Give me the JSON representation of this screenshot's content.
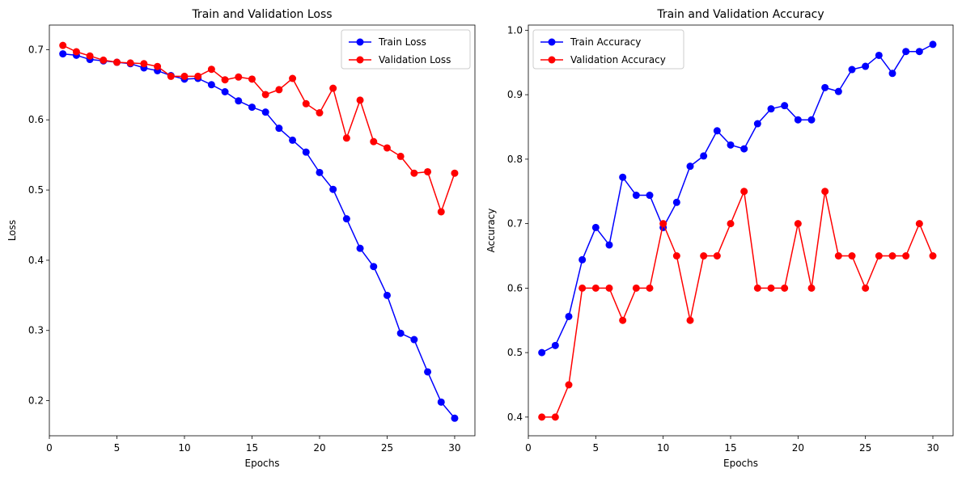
{
  "chart_data": [
    {
      "type": "line",
      "title": "Train and Validation Loss",
      "xlabel": "Epochs",
      "ylabel": "Loss",
      "xlim": [
        0,
        31.5
      ],
      "ylim": [
        0.15,
        0.735
      ],
      "xticks": [
        0,
        5,
        10,
        15,
        20,
        25,
        30
      ],
      "yticks": [
        0.2,
        0.3,
        0.4,
        0.5,
        0.6,
        0.7
      ],
      "legend_position": "upper right",
      "grid": false,
      "x": [
        1,
        2,
        3,
        4,
        5,
        6,
        7,
        8,
        9,
        10,
        11,
        12,
        13,
        14,
        15,
        16,
        17,
        18,
        19,
        20,
        21,
        22,
        23,
        24,
        25,
        26,
        27,
        28,
        29,
        30
      ],
      "series": [
        {
          "name": "Train Loss",
          "color": "#0000ff",
          "values": [
            0.694,
            0.692,
            0.686,
            0.684,
            0.682,
            0.68,
            0.674,
            0.67,
            0.663,
            0.658,
            0.659,
            0.65,
            0.64,
            0.627,
            0.618,
            0.611,
            0.588,
            0.571,
            0.554,
            0.525,
            0.501,
            0.459,
            0.417,
            0.391,
            0.35,
            0.296,
            0.287,
            0.241,
            0.198,
            0.175
          ]
        },
        {
          "name": "Validation Loss",
          "color": "#ff0000",
          "values": [
            0.706,
            0.697,
            0.691,
            0.685,
            0.682,
            0.681,
            0.68,
            0.676,
            0.662,
            0.662,
            0.662,
            0.672,
            0.657,
            0.661,
            0.658,
            0.636,
            0.643,
            0.659,
            0.623,
            0.61,
            0.645,
            0.574,
            0.628,
            0.569,
            0.56,
            0.548,
            0.524,
            0.526,
            0.469,
            0.524
          ]
        }
      ]
    },
    {
      "type": "line",
      "title": "Train and Validation Accuracy",
      "xlabel": "Epochs",
      "ylabel": "Accuracy",
      "xlim": [
        0,
        31.5
      ],
      "ylim": [
        0.371,
        1.008
      ],
      "xticks": [
        0,
        5,
        10,
        15,
        20,
        25,
        30
      ],
      "yticks": [
        0.4,
        0.5,
        0.6,
        0.7,
        0.8,
        0.9,
        1.0
      ],
      "legend_position": "upper left",
      "grid": false,
      "x": [
        1,
        2,
        3,
        4,
        5,
        6,
        7,
        8,
        9,
        10,
        11,
        12,
        13,
        14,
        15,
        16,
        17,
        18,
        19,
        20,
        21,
        22,
        23,
        24,
        25,
        26,
        27,
        28,
        29,
        30
      ],
      "series": [
        {
          "name": "Train Accuracy",
          "color": "#0000ff",
          "values": [
            0.5,
            0.511,
            0.556,
            0.644,
            0.694,
            0.667,
            0.772,
            0.744,
            0.744,
            0.694,
            0.733,
            0.789,
            0.805,
            0.844,
            0.822,
            0.816,
            0.855,
            0.878,
            0.883,
            0.861,
            0.861,
            0.911,
            0.905,
            0.939,
            0.944,
            0.961,
            0.933,
            0.967,
            0.967,
            0.978
          ]
        },
        {
          "name": "Validation Accuracy",
          "color": "#ff0000",
          "values": [
            0.4,
            0.4,
            0.45,
            0.6,
            0.6,
            0.6,
            0.55,
            0.6,
            0.6,
            0.7,
            0.65,
            0.55,
            0.65,
            0.65,
            0.7,
            0.75,
            0.6,
            0.6,
            0.6,
            0.7,
            0.6,
            0.75,
            0.65,
            0.65,
            0.6,
            0.65,
            0.65,
            0.65,
            0.7,
            0.65
          ]
        }
      ]
    }
  ]
}
